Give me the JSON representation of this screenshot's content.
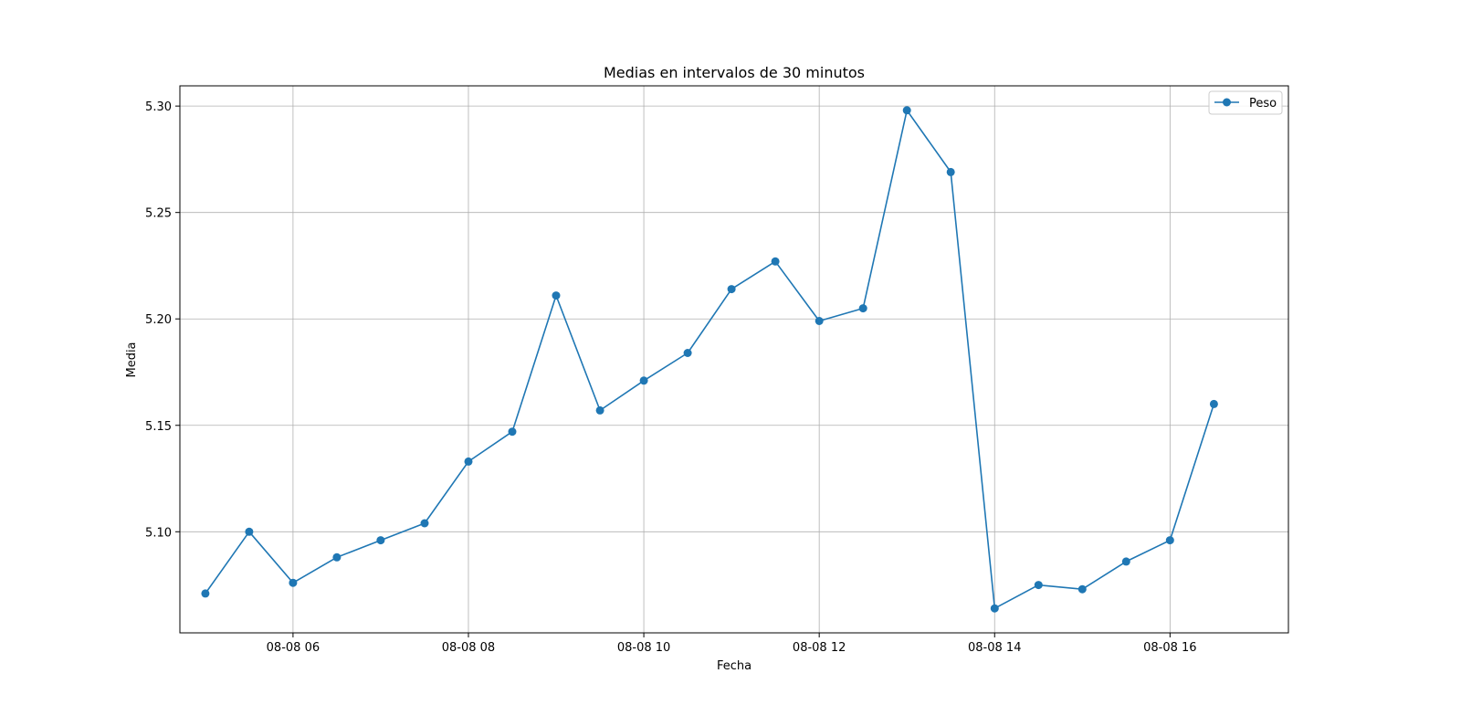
{
  "chart_data": {
    "type": "line",
    "title": "Medias en intervalos de 30 minutos",
    "xlabel": "Fecha",
    "ylabel": "Media",
    "x": [
      "08-08 05:00",
      "08-08 05:30",
      "08-08 06:00",
      "08-08 06:30",
      "08-08 07:00",
      "08-08 07:30",
      "08-08 08:00",
      "08-08 08:30",
      "08-08 09:00",
      "08-08 09:30",
      "08-08 10:00",
      "08-08 10:30",
      "08-08 11:00",
      "08-08 11:30",
      "08-08 12:00",
      "08-08 12:30",
      "08-08 13:00",
      "08-08 13:30",
      "08-08 14:00",
      "08-08 14:30",
      "08-08 15:00",
      "08-08 15:30",
      "08-08 16:00",
      "08-08 16:30"
    ],
    "series": [
      {
        "name": "Peso",
        "color": "#1f77b4",
        "values": [
          5.071,
          5.1,
          5.076,
          5.088,
          5.096,
          5.104,
          5.133,
          5.147,
          5.211,
          5.157,
          5.171,
          5.184,
          5.214,
          5.227,
          5.199,
          5.205,
          5.298,
          5.269,
          5.064,
          5.075,
          5.073,
          5.086,
          5.096,
          5.16
        ]
      }
    ],
    "x_ticks": [
      "08-08 06",
      "08-08 08",
      "08-08 10",
      "08-08 12",
      "08-08 14",
      "08-08 16"
    ],
    "y_ticks": [
      "5.10",
      "5.15",
      "5.20",
      "5.25",
      "5.30"
    ],
    "ylim": [
      5.0525,
      5.3095
    ],
    "grid": true,
    "legend_position": "top-right"
  }
}
